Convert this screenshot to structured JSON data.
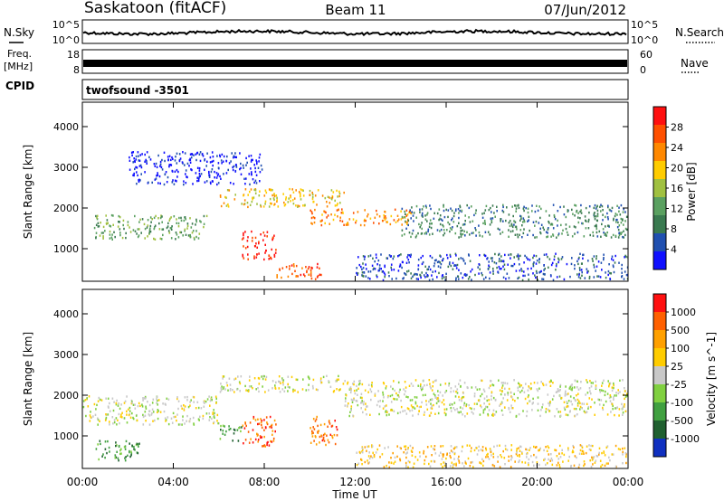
{
  "header": {
    "station": "Saskatoon (fitACF)",
    "beam": "Beam 11",
    "date": "07/Jun/2012"
  },
  "panels": {
    "nsky_label": "N.Sky",
    "nsearch_label": "N.Search",
    "freq_label_1": "Freq.",
    "freq_label_2": "[MHz]",
    "nave_label": "Nave",
    "cpid_label": "CPID",
    "cpid_value": "twofsound -3501",
    "nsky_ticks": [
      "10^5",
      "10^0"
    ],
    "freq_ticks": [
      "18",
      "8"
    ],
    "nave_ticks": [
      "60",
      "0"
    ]
  },
  "chart_data": [
    {
      "type": "heatmap",
      "title": "",
      "ylabel": "Slant Range [km]",
      "xlabel": "Time UT",
      "x_ticks": [
        "00:00",
        "04:00",
        "08:00",
        "12:00",
        "16:00",
        "20:00",
        "00:00"
      ],
      "y_ticks": [
        1000,
        2000,
        3000,
        4000
      ],
      "ylim": [
        200,
        4600
      ],
      "colorbar": {
        "label": "Power [dB]",
        "ticks": [
          "4",
          "8",
          "12",
          "16",
          "20",
          "24",
          "28"
        ],
        "colors": [
          "#1010ff",
          "#2050b0",
          "#3a7a50",
          "#5aa060",
          "#a0c040",
          "#ffcc00",
          "#ff8800",
          "#ff5000",
          "#ff1010"
        ]
      },
      "regions": [
        {
          "t0": 0.5,
          "t1": 5.5,
          "r0": 1250,
          "r1": 1850,
          "level": 3
        },
        {
          "t0": 6.0,
          "t1": 11.5,
          "r0": 2050,
          "r1": 2500,
          "level": 5
        },
        {
          "t0": 7.0,
          "t1": 8.5,
          "r0": 750,
          "r1": 1450,
          "level": 8
        },
        {
          "t0": 8.5,
          "t1": 10.5,
          "r0": 250,
          "r1": 650,
          "level": 7
        },
        {
          "t0": 10.0,
          "t1": 14.5,
          "r0": 1600,
          "r1": 2000,
          "level": 6
        },
        {
          "t0": 14.0,
          "t1": 24.0,
          "r0": 1300,
          "r1": 2100,
          "level": 2
        },
        {
          "t0": 12.0,
          "t1": 24.0,
          "r0": 250,
          "r1": 900,
          "level": 1
        },
        {
          "t0": 2.0,
          "t1": 8.0,
          "r0": 2600,
          "r1": 3400,
          "level": 0
        }
      ]
    },
    {
      "type": "heatmap",
      "title": "",
      "ylabel": "Slant Range [km]",
      "xlabel": "Time UT",
      "x_ticks": [
        "00:00",
        "04:00",
        "08:00",
        "12:00",
        "16:00",
        "20:00",
        "00:00"
      ],
      "y_ticks": [
        1000,
        2000,
        3000,
        4000
      ],
      "ylim": [
        200,
        4600
      ],
      "colorbar": {
        "label": "Velocity [m s^-1]",
        "ticks": [
          "1000",
          "500",
          "100",
          "25",
          "-25",
          "-100",
          "-500",
          "-1000"
        ],
        "colors": [
          "#1030c0",
          "#206030",
          "#40a040",
          "#80d040",
          "#c8c8c8",
          "#ffcc00",
          "#ffa000",
          "#ff6000",
          "#ff1010"
        ]
      },
      "regions": [
        {
          "t0": 0.0,
          "t1": 6.0,
          "r0": 1300,
          "r1": 2000,
          "level": 4
        },
        {
          "t0": 6.0,
          "t1": 11.5,
          "r0": 2100,
          "r1": 2500,
          "level": 4
        },
        {
          "t0": 7.0,
          "t1": 8.5,
          "r0": 750,
          "r1": 1500,
          "level": 7
        },
        {
          "t0": 10.0,
          "t1": 11.3,
          "r0": 800,
          "r1": 1500,
          "level": 7
        },
        {
          "t0": 6.0,
          "t1": 7.0,
          "r0": 900,
          "r1": 1300,
          "level": 2
        },
        {
          "t0": 11.5,
          "t1": 24.0,
          "r0": 1500,
          "r1": 2400,
          "level": 4
        },
        {
          "t0": 12.0,
          "t1": 24.0,
          "r0": 250,
          "r1": 800,
          "level": 5
        },
        {
          "t0": 0.5,
          "t1": 2.5,
          "r0": 400,
          "r1": 900,
          "level": 2
        }
      ]
    }
  ]
}
